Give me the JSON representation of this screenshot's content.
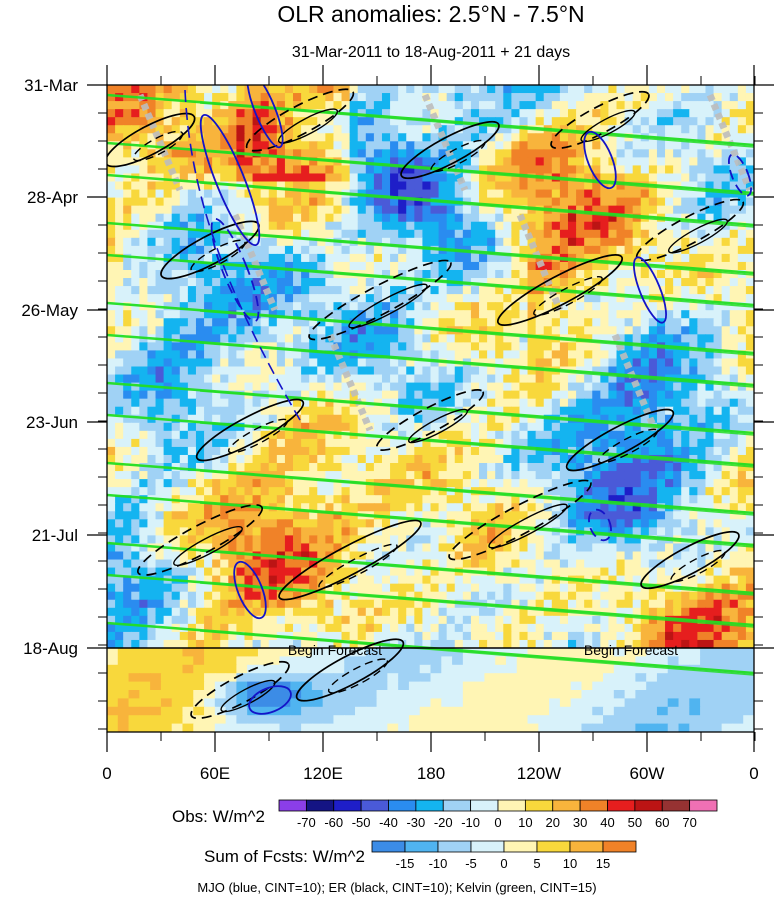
{
  "chart_data": {
    "type": "heatmap",
    "title": "OLR anomalies: 2.5°N - 7.5°N",
    "subtitle": "31-Mar-2011 to 18-Aug-2011 + 21 days",
    "x_tick_labels": [
      "0",
      "60E",
      "120E",
      "180",
      "120W",
      "60W",
      "0"
    ],
    "y_tick_labels": [
      "31-Mar",
      "28-Apr",
      "26-May",
      "23-Jun",
      "21-Jul",
      "18-Aug"
    ],
    "forecast_labels": [
      "Begin Forecast",
      "Begin Forecast"
    ],
    "obs_colorbar": {
      "label": "Obs: W/m^2",
      "levels": [
        -70,
        -60,
        -50,
        -40,
        -30,
        -20,
        -10,
        0,
        10,
        20,
        30,
        40,
        50,
        60,
        70
      ],
      "colors": [
        "#8b3ee8",
        "#141484",
        "#1e1ec8",
        "#4a5ad8",
        "#2a8cf0",
        "#14b4f0",
        "#a0d2f5",
        "#d8f2fa",
        "#fff5b4",
        "#f8d83c",
        "#f8b43c",
        "#f08228",
        "#e61e1e",
        "#bc1414",
        "#963232",
        "#f070b4"
      ]
    },
    "fcst_colorbar": {
      "label": "Sum of Fcsts: W/m^2",
      "levels": [
        -15,
        -10,
        -5,
        0,
        5,
        10,
        15
      ],
      "colors": [
        "#3c8ce6",
        "#50b4f0",
        "#a0d2f5",
        "#d8f2fa",
        "#fff5b4",
        "#f8d83c",
        "#f8b43c",
        "#f08228"
      ]
    },
    "footer": "MJO (blue, CINT=10); ER (black, CINT=10); Kelvin (green, CINT=15)"
  }
}
